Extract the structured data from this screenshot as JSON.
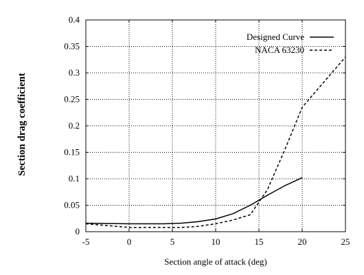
{
  "chart_data": {
    "type": "line",
    "title": "",
    "xlabel": "Section angle of attack (deg)",
    "ylabel": "Section drag coefficient",
    "xlim": [
      -5,
      25
    ],
    "ylim": [
      0,
      0.4
    ],
    "xticks": [
      -5,
      0,
      5,
      10,
      15,
      20,
      25
    ],
    "yticks": [
      0,
      0.05,
      0.1,
      0.15,
      0.2,
      0.25,
      0.3,
      0.35,
      0.4
    ],
    "xtick_labels": [
      "-5",
      "0",
      "5",
      "10",
      "15",
      "20",
      "25"
    ],
    "ytick_labels": [
      "0",
      "0.05",
      "0.1",
      "0.15",
      "0.2",
      "0.25",
      "0.3",
      "0.35",
      "0.4"
    ],
    "grid": true,
    "legend_position": "top-right",
    "series": [
      {
        "name": "Designed Curve",
        "line_style": "solid",
        "color": "#000000",
        "x": [
          -5,
          0,
          2,
          4,
          6,
          8,
          10,
          12,
          14,
          16,
          18,
          20
        ],
        "y": [
          0.016,
          0.015,
          0.015,
          0.015,
          0.016,
          0.019,
          0.024,
          0.034,
          0.05,
          0.069,
          0.087,
          0.102
        ]
      },
      {
        "name": "NACA 63230",
        "line_style": "dashed",
        "color": "#000000",
        "x": [
          -5,
          0,
          2,
          4,
          6,
          8,
          10,
          12,
          14,
          16,
          18,
          20,
          25
        ],
        "y": [
          0.015,
          0.008,
          0.008,
          0.008,
          0.008,
          0.01,
          0.015,
          0.022,
          0.032,
          0.08,
          0.155,
          0.235,
          0.33
        ]
      }
    ]
  }
}
